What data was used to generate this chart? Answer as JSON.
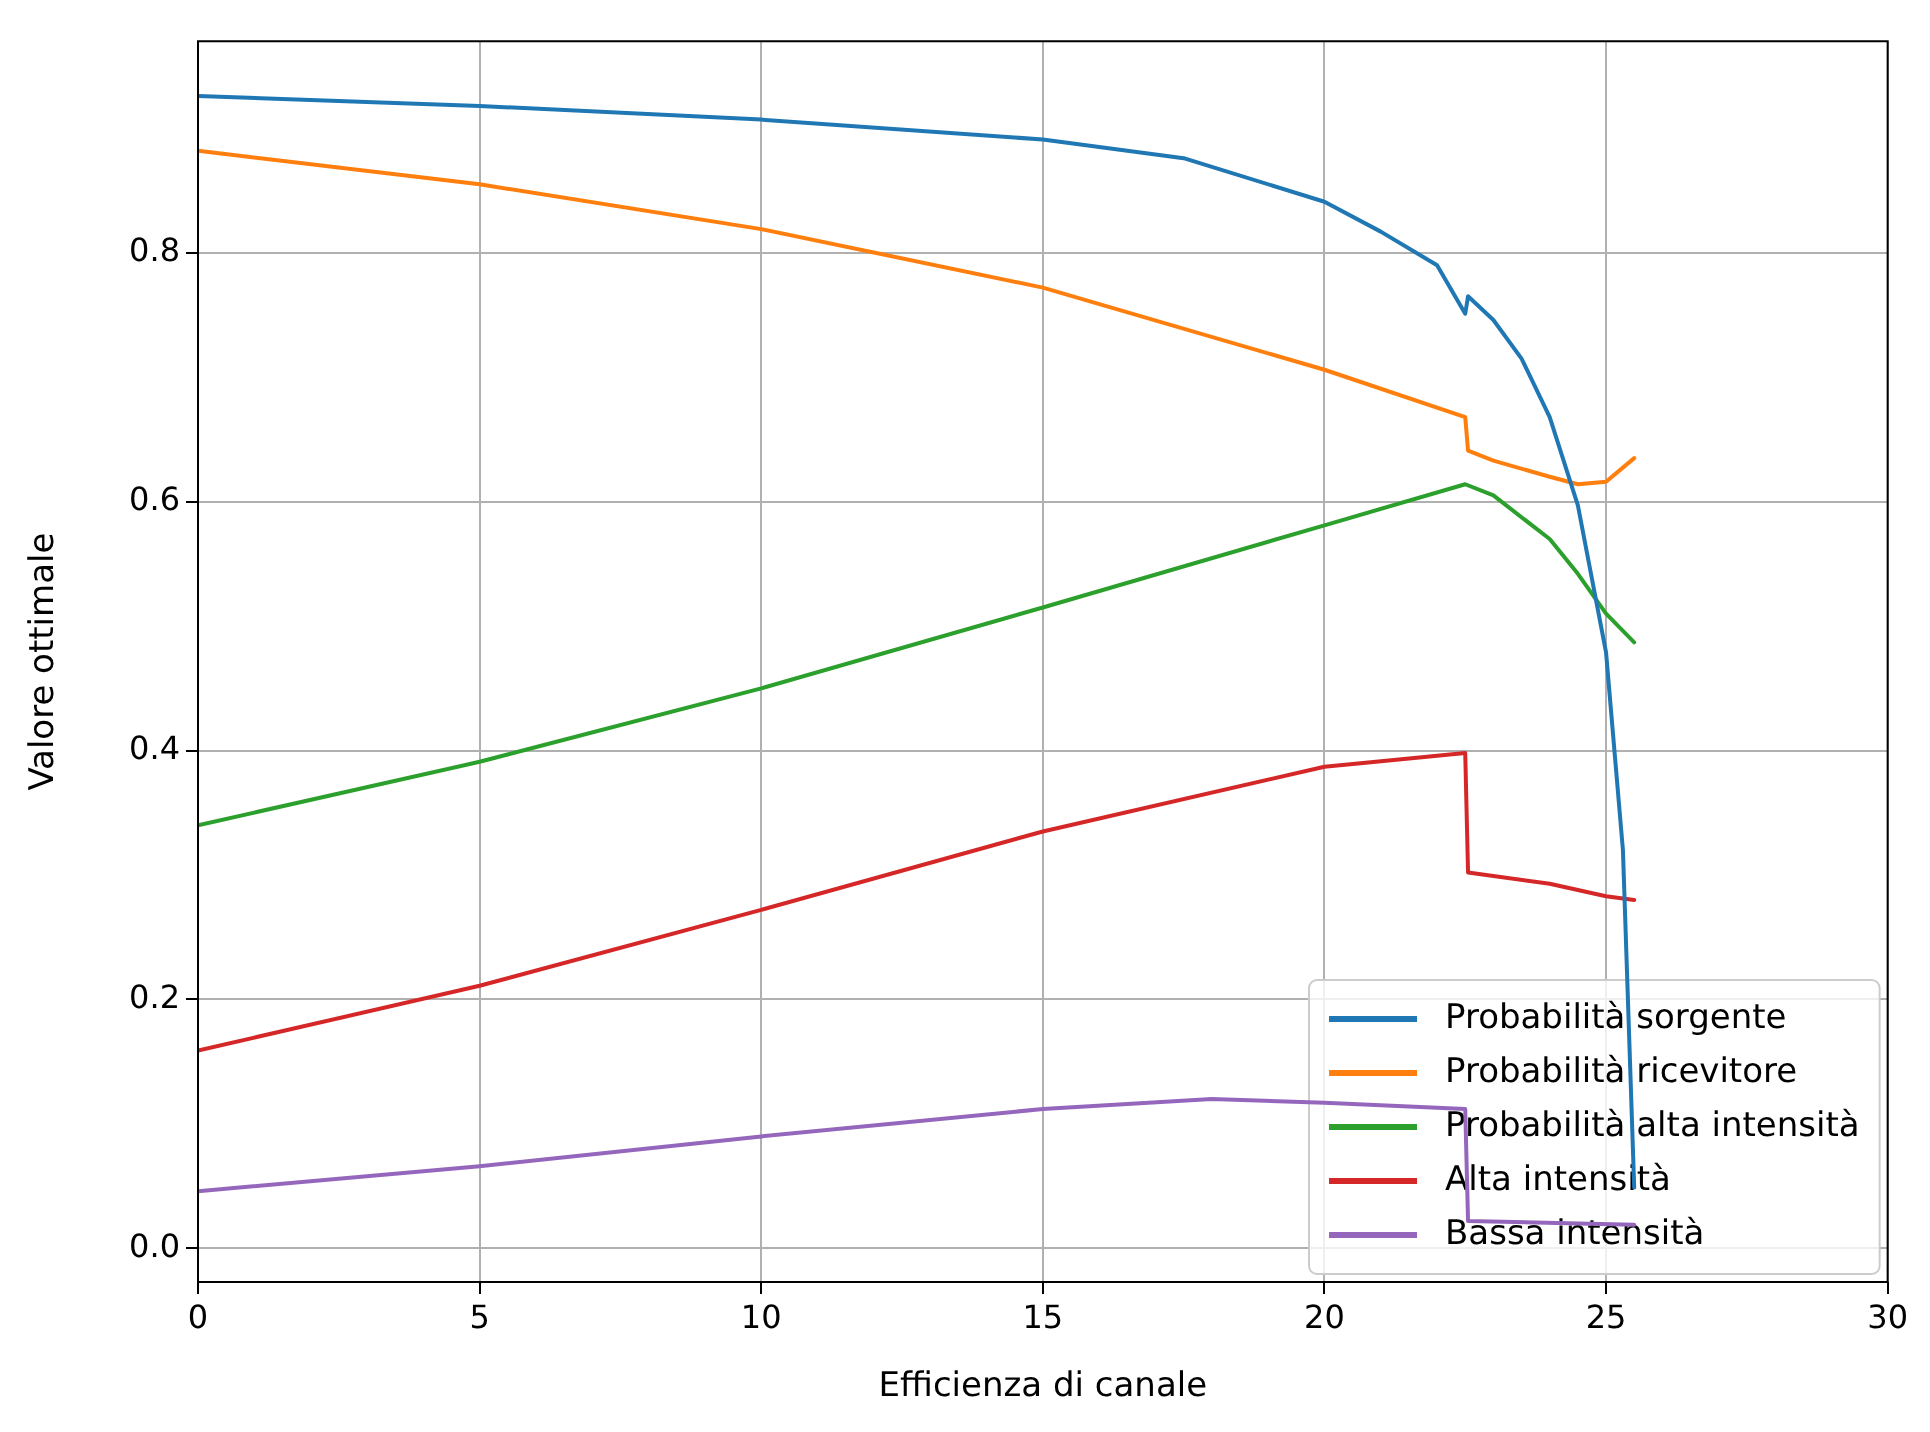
{
  "chart_data": {
    "type": "line",
    "xlabel": "Efficienza di canale",
    "ylabel": "Valore ottimale",
    "xlim": [
      0,
      30
    ],
    "ylim": [
      -0.027,
      0.97
    ],
    "xticks": [
      0,
      5,
      10,
      15,
      20,
      25,
      30
    ],
    "yticks": [
      {
        "value": 0,
        "label": "0.0"
      },
      0.2,
      0.4,
      0.6,
      0.8
    ],
    "grid": true,
    "legend": "bottom right",
    "marker": "none",
    "line_style": "solid",
    "series": [
      {
        "name": "Probabilità sorgente",
        "color": "#1f77b4",
        "x": [
          0,
          5,
          10,
          15,
          17.5,
          20,
          21,
          22,
          22.5,
          22.55,
          23,
          23.5,
          24,
          24.5,
          25,
          25.3,
          25.5
        ],
        "values": [
          0.926,
          0.918,
          0.907,
          0.891,
          0.876,
          0.841,
          0.817,
          0.79,
          0.751,
          0.765,
          0.746,
          0.715,
          0.668,
          0.597,
          0.479,
          0.32,
          0.049
        ]
      },
      {
        "name": "Probabilità ricevitore",
        "color": "#ff7f0e",
        "x": [
          0,
          5,
          10,
          15,
          20,
          22.5,
          22.55,
          23,
          24,
          24.5,
          25,
          25.5
        ],
        "values": [
          0.882,
          0.855,
          0.819,
          0.772,
          0.706,
          0.668,
          0.641,
          0.633,
          0.62,
          0.614,
          0.616,
          0.635
        ]
      },
      {
        "name": "Probabilità alta intensità",
        "color": "#2ca02c",
        "x": [
          0,
          5,
          10,
          15,
          20,
          22.5,
          23,
          24,
          24.5,
          25,
          25.5
        ],
        "values": [
          0.34,
          0.391,
          0.45,
          0.515,
          0.581,
          0.614,
          0.605,
          0.57,
          0.542,
          0.51,
          0.487
        ]
      },
      {
        "name": "Alta intensità",
        "color": "#d62728",
        "x": [
          0,
          5,
          10,
          15,
          20,
          22.5,
          22.55,
          24,
          25,
          25.5
        ],
        "values": [
          0.159,
          0.211,
          0.272,
          0.335,
          0.387,
          0.398,
          0.302,
          0.293,
          0.283,
          0.28
        ]
      },
      {
        "name": "Bassa intensità",
        "color": "#9467bd",
        "x": [
          0,
          5,
          10,
          15,
          18,
          20,
          22.5,
          22.55,
          25.5
        ],
        "values": [
          0.046,
          0.066,
          0.09,
          0.112,
          0.12,
          0.117,
          0.112,
          0.022,
          0.019
        ]
      }
    ]
  }
}
